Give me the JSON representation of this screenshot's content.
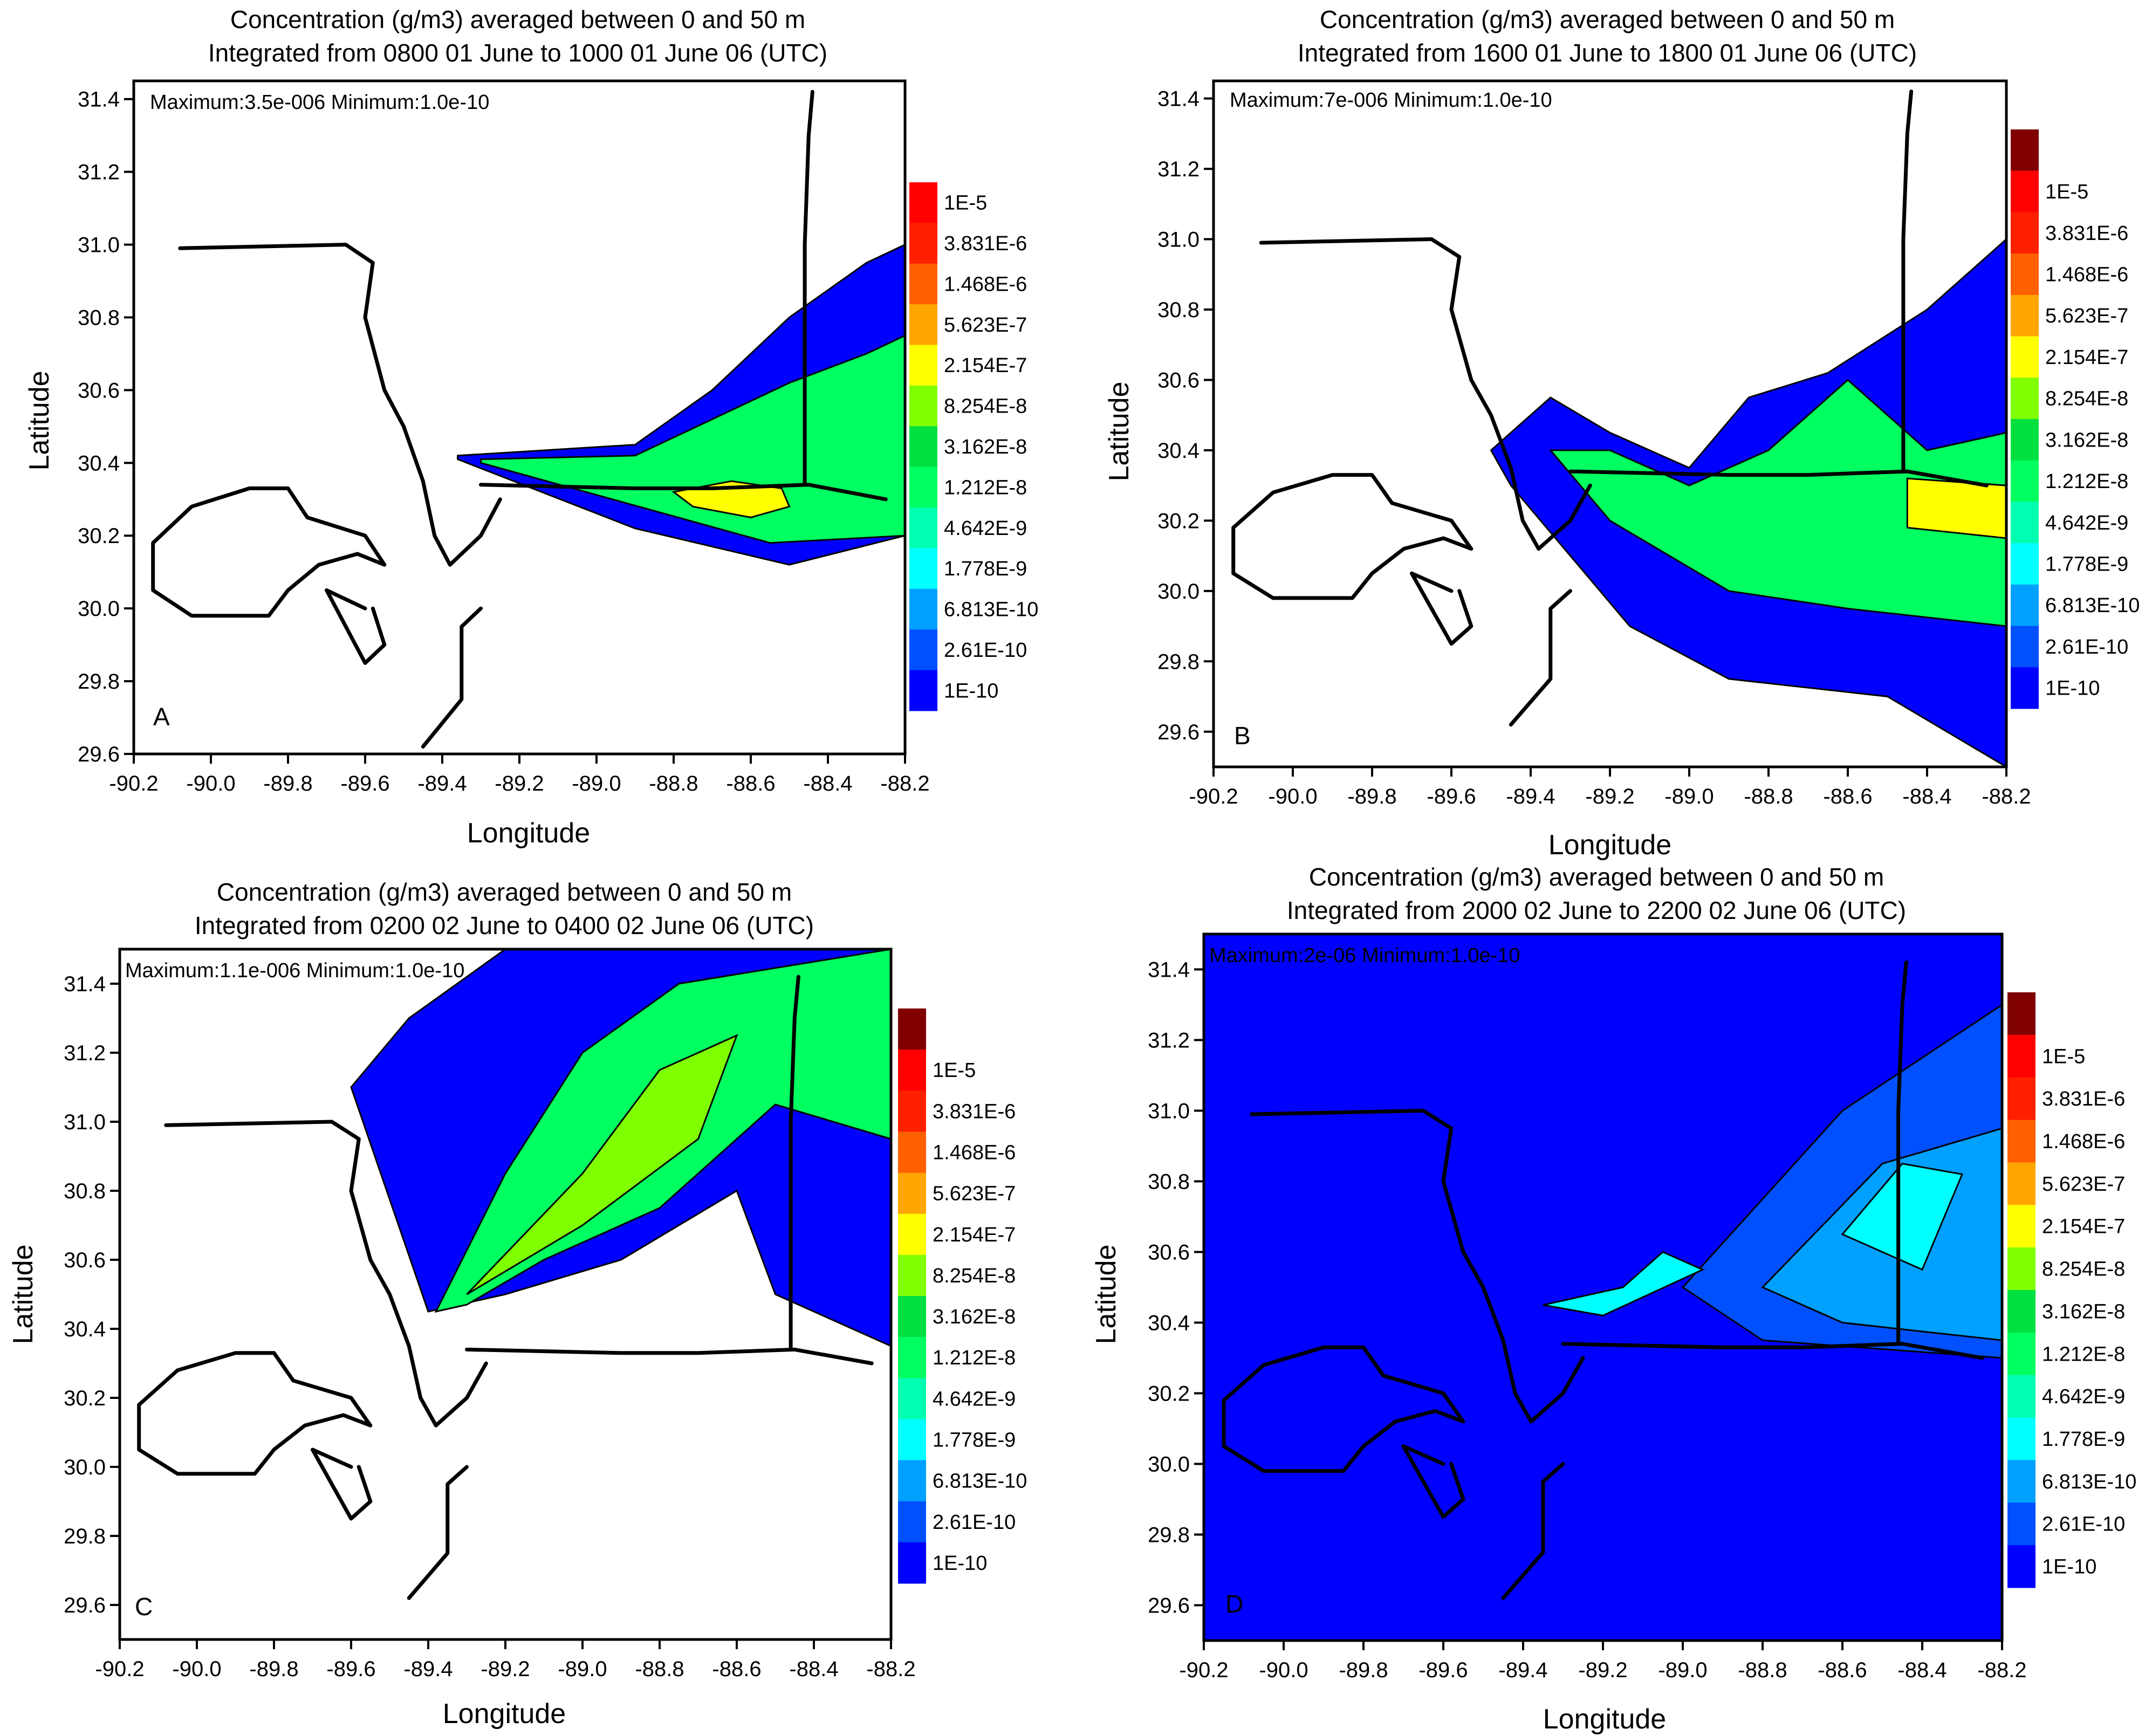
{
  "colors": {
    "frame": "#000000",
    "coast": "#000000",
    "levels": [
      "#0000FF",
      "#0050FF",
      "#00A0FF",
      "#00FFFF",
      "#00FFB0",
      "#00FF60",
      "#00E040",
      "#80FF00",
      "#FFFF00",
      "#FFA500",
      "#FF6000",
      "#FF2000",
      "#FF0000",
      "#800000"
    ]
  },
  "colorbar_labels": [
    "1E-5",
    "3.831E-6",
    "1.468E-6",
    "5.623E-7",
    "2.154E-7",
    "8.254E-8",
    "3.162E-8",
    "1.212E-8",
    "4.642E-9",
    "1.778E-9",
    "6.813E-10",
    "2.61E-10",
    "1E-10"
  ],
  "chart_data": [
    {
      "type": "heatmap",
      "panel": "A",
      "title_line1": "Concentration (g/m3) averaged between 0 and 50 m",
      "title_line2": "Integrated from 0800 01 June to 1000 01 June 06 (UTC)",
      "annotation": "Maximum:3.5e-006 Minimum:1.0e-10",
      "xlabel": "Longitude",
      "ylabel": "Latitude",
      "xlim": [
        -90.2,
        -88.2
      ],
      "ylim": [
        29.6,
        31.45
      ],
      "xticks": [
        "-90.2",
        "-90.0",
        "-89.8",
        "-89.6",
        "-89.4",
        "-89.2",
        "-89.0",
        "-88.8",
        "-88.6",
        "-88.4",
        "-88.2"
      ],
      "yticks": [
        "29.6",
        "29.8",
        "30.0",
        "30.2",
        "30.4",
        "30.6",
        "30.8",
        "31.0",
        "31.2",
        "31.4"
      ],
      "max": 3.5e-06,
      "min": 1e-10,
      "plume_levels": [
        {
          "level": 0,
          "points": [
            [
              -89.36,
              30.42
            ],
            [
              -88.9,
              30.45
            ],
            [
              -88.7,
              30.6
            ],
            [
              -88.5,
              30.8
            ],
            [
              -88.3,
              30.95
            ],
            [
              -88.2,
              31.0
            ],
            [
              -88.2,
              30.2
            ],
            [
              -88.5,
              30.12
            ],
            [
              -88.9,
              30.22
            ],
            [
              -89.36,
              30.41
            ]
          ]
        },
        {
          "level": 5,
          "points": [
            [
              -89.3,
              30.41
            ],
            [
              -88.9,
              30.42
            ],
            [
              -88.7,
              30.52
            ],
            [
              -88.5,
              30.62
            ],
            [
              -88.3,
              30.7
            ],
            [
              -88.2,
              30.75
            ],
            [
              -88.2,
              30.2
            ],
            [
              -88.55,
              30.18
            ],
            [
              -89.3,
              30.4
            ]
          ]
        },
        {
          "level": 8,
          "points": [
            [
              -88.8,
              30.32
            ],
            [
              -88.65,
              30.35
            ],
            [
              -88.52,
              30.33
            ],
            [
              -88.5,
              30.28
            ],
            [
              -88.6,
              30.25
            ],
            [
              -88.75,
              30.28
            ]
          ]
        }
      ]
    },
    {
      "type": "heatmap",
      "panel": "B",
      "title_line1": "Concentration (g/m3) averaged between 0 and 50 m",
      "title_line2": "Integrated from 1600 01 June to 1800 01 June 06 (UTC)",
      "annotation": "Maximum:7e-006 Minimum:1.0e-10",
      "xlabel": "Longitude",
      "ylabel": "Latitude",
      "xlim": [
        -90.2,
        -88.2
      ],
      "ylim": [
        29.5,
        31.45
      ],
      "xticks": [
        "-90.2",
        "-90.0",
        "-89.8",
        "-89.6",
        "-89.4",
        "-89.2",
        "-89.0",
        "-88.8",
        "-88.6",
        "-88.4",
        "-88.2"
      ],
      "yticks": [
        "29.6",
        "29.8",
        "30.0",
        "30.2",
        "30.4",
        "30.6",
        "30.8",
        "31.0",
        "31.2",
        "31.4"
      ],
      "max": 7e-06,
      "min": 1e-10,
      "plume_levels": [
        {
          "level": 0,
          "points": [
            [
              -89.5,
              30.4
            ],
            [
              -89.35,
              30.55
            ],
            [
              -89.2,
              30.45
            ],
            [
              -89.0,
              30.35
            ],
            [
              -88.85,
              30.55
            ],
            [
              -88.65,
              30.62
            ],
            [
              -88.4,
              30.8
            ],
            [
              -88.2,
              31.0
            ],
            [
              -88.2,
              29.5
            ],
            [
              -88.5,
              29.7
            ],
            [
              -88.9,
              29.75
            ],
            [
              -89.15,
              29.9
            ],
            [
              -89.3,
              30.1
            ],
            [
              -89.45,
              30.3
            ]
          ]
        },
        {
          "level": 5,
          "points": [
            [
              -89.35,
              30.4
            ],
            [
              -89.2,
              30.4
            ],
            [
              -89.0,
              30.3
            ],
            [
              -88.8,
              30.4
            ],
            [
              -88.6,
              30.6
            ],
            [
              -88.4,
              30.4
            ],
            [
              -88.2,
              30.45
            ],
            [
              -88.2,
              29.9
            ],
            [
              -88.6,
              29.95
            ],
            [
              -88.9,
              30.0
            ],
            [
              -89.2,
              30.2
            ]
          ]
        },
        {
          "level": 8,
          "points": [
            [
              -88.45,
              30.32
            ],
            [
              -88.2,
              30.3
            ],
            [
              -88.2,
              30.15
            ],
            [
              -88.45,
              30.18
            ]
          ]
        }
      ]
    },
    {
      "type": "heatmap",
      "panel": "C",
      "title_line1": "Concentration (g/m3) averaged between 0 and 50 m",
      "title_line2": "Integrated from 0200 02 June to 0400 02 June 06 (UTC)",
      "annotation": "Maximum:1.1e-006 Minimum:1.0e-10",
      "xlabel": "Longitude",
      "ylabel": "Latitude",
      "xlim": [
        -90.2,
        -88.2
      ],
      "ylim": [
        29.5,
        31.5
      ],
      "xticks": [
        "-90.2",
        "-90.0",
        "-89.8",
        "-89.6",
        "-89.4",
        "-89.2",
        "-89.0",
        "-88.8",
        "-88.6",
        "-88.4",
        "-88.2"
      ],
      "yticks": [
        "29.6",
        "29.8",
        "30.0",
        "30.2",
        "30.4",
        "30.6",
        "30.8",
        "31.0",
        "31.2",
        "31.4"
      ],
      "max": 1.1e-06,
      "min": 1e-10,
      "plume_levels": [
        {
          "level": 0,
          "points": [
            [
              -89.4,
              30.45
            ],
            [
              -89.6,
              31.1
            ],
            [
              -89.45,
              31.3
            ],
            [
              -89.2,
              31.5
            ],
            [
              -88.2,
              31.5
            ],
            [
              -88.2,
              30.35
            ],
            [
              -88.5,
              30.5
            ],
            [
              -88.6,
              30.8
            ],
            [
              -88.9,
              30.6
            ],
            [
              -89.2,
              30.5
            ]
          ]
        },
        {
          "level": 5,
          "points": [
            [
              -89.38,
              30.45
            ],
            [
              -89.2,
              30.85
            ],
            [
              -89.0,
              31.2
            ],
            [
              -88.75,
              31.4
            ],
            [
              -88.2,
              31.5
            ],
            [
              -88.2,
              30.95
            ],
            [
              -88.5,
              31.05
            ],
            [
              -88.8,
              30.75
            ],
            [
              -89.1,
              30.6
            ],
            [
              -89.3,
              30.47
            ]
          ]
        },
        {
          "level": 7,
          "points": [
            [
              -89.3,
              30.5
            ],
            [
              -89.0,
              30.85
            ],
            [
              -88.8,
              31.15
            ],
            [
              -88.6,
              31.25
            ],
            [
              -88.7,
              30.95
            ],
            [
              -89.0,
              30.7
            ]
          ]
        }
      ]
    },
    {
      "type": "heatmap",
      "panel": "D",
      "title_line1": "Concentration (g/m3) averaged between 0 and 50 m",
      "title_line2": "Integrated from 2000 02 June to 2200 02 June 06 (UTC)",
      "annotation": "Maximum:2e-06 Minimum:1.0e-10",
      "xlabel": "Longitude",
      "ylabel": "Latitude",
      "xlim": [
        -90.2,
        -88.2
      ],
      "ylim": [
        29.5,
        31.5
      ],
      "xticks": [
        "-90.2",
        "-90.0",
        "-89.8",
        "-89.6",
        "-89.4",
        "-89.2",
        "-89.0",
        "-88.8",
        "-88.6",
        "-88.4",
        "-88.2"
      ],
      "yticks": [
        "29.6",
        "29.8",
        "30.0",
        "30.2",
        "30.4",
        "30.6",
        "30.8",
        "31.0",
        "31.2",
        "31.4"
      ],
      "max": 2e-06,
      "min": 1e-10,
      "plume_levels": [
        {
          "level": 0,
          "points": [
            [
              -90.2,
              29.5
            ],
            [
              -90.2,
              31.5
            ],
            [
              -88.2,
              31.5
            ],
            [
              -88.2,
              29.5
            ]
          ]
        },
        {
          "level": 1,
          "points": [
            [
              -89.0,
              30.5
            ],
            [
              -88.6,
              31.0
            ],
            [
              -88.2,
              31.3
            ],
            [
              -88.2,
              30.3
            ],
            [
              -88.8,
              30.35
            ]
          ]
        },
        {
          "level": 2,
          "points": [
            [
              -88.8,
              30.5
            ],
            [
              -88.5,
              30.85
            ],
            [
              -88.2,
              30.95
            ],
            [
              -88.2,
              30.35
            ],
            [
              -88.6,
              30.4
            ]
          ]
        },
        {
          "level": 3,
          "points": [
            [
              -88.6,
              30.65
            ],
            [
              -88.45,
              30.85
            ],
            [
              -88.3,
              30.82
            ],
            [
              -88.4,
              30.55
            ]
          ]
        },
        {
          "level": 3,
          "points": [
            [
              -89.35,
              30.45
            ],
            [
              -89.15,
              30.5
            ],
            [
              -89.05,
              30.6
            ],
            [
              -88.95,
              30.55
            ],
            [
              -89.2,
              30.42
            ]
          ]
        }
      ]
    }
  ],
  "coastline": [
    [
      [
        -90.08,
        30.99
      ],
      [
        -89.65,
        31.0
      ],
      [
        -89.58,
        30.95
      ],
      [
        -89.6,
        30.8
      ],
      [
        -89.55,
        30.6
      ],
      [
        -89.5,
        30.5
      ],
      [
        -89.45,
        30.35
      ],
      [
        -89.42,
        30.2
      ],
      [
        -89.38,
        30.12
      ]
    ],
    [
      [
        -89.55,
        30.12
      ],
      [
        -89.6,
        30.2
      ],
      [
        -89.75,
        30.25
      ],
      [
        -89.8,
        30.33
      ],
      [
        -89.9,
        30.33
      ],
      [
        -90.05,
        30.28
      ],
      [
        -90.15,
        30.18
      ],
      [
        -90.15,
        30.05
      ],
      [
        -90.05,
        29.98
      ],
      [
        -89.85,
        29.98
      ],
      [
        -89.8,
        30.05
      ],
      [
        -89.72,
        30.12
      ],
      [
        -89.62,
        30.15
      ],
      [
        -89.55,
        30.12
      ]
    ],
    [
      [
        -89.6,
        30.0
      ],
      [
        -89.7,
        30.05
      ],
      [
        -89.65,
        29.95
      ],
      [
        -89.6,
        29.85
      ],
      [
        -89.55,
        29.9
      ],
      [
        -89.58,
        30.0
      ]
    ],
    [
      [
        -89.45,
        29.62
      ],
      [
        -89.35,
        29.75
      ],
      [
        -89.35,
        29.95
      ],
      [
        -89.3,
        30.0
      ]
    ],
    [
      [
        -89.38,
        30.12
      ],
      [
        -89.3,
        30.2
      ],
      [
        -89.25,
        30.3
      ]
    ],
    [
      [
        -89.3,
        30.34
      ],
      [
        -88.9,
        30.33
      ],
      [
        -88.7,
        30.33
      ],
      [
        -88.45,
        30.34
      ],
      [
        -88.25,
        30.3
      ]
    ],
    [
      [
        -88.46,
        30.34
      ],
      [
        -88.46,
        30.7
      ],
      [
        -88.46,
        31.0
      ],
      [
        -88.45,
        31.3
      ],
      [
        -88.44,
        31.42
      ]
    ]
  ]
}
